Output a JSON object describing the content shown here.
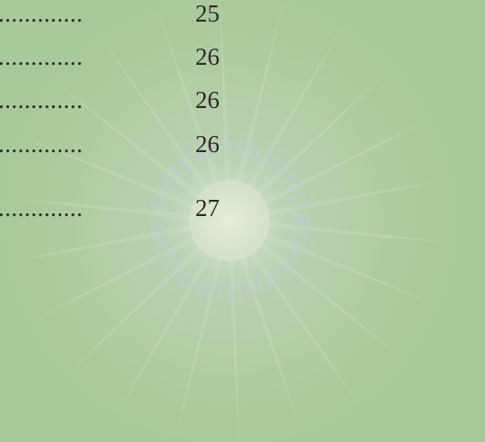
{
  "toc": {
    "rows": [
      {
        "leader": ".............",
        "page": 25
      },
      {
        "leader": ".............",
        "page": 26
      },
      {
        "leader": ".............",
        "page": 26
      },
      {
        "leader": ".............",
        "page": 26
      },
      {
        "leader": ".............",
        "page": 27
      }
    ]
  }
}
